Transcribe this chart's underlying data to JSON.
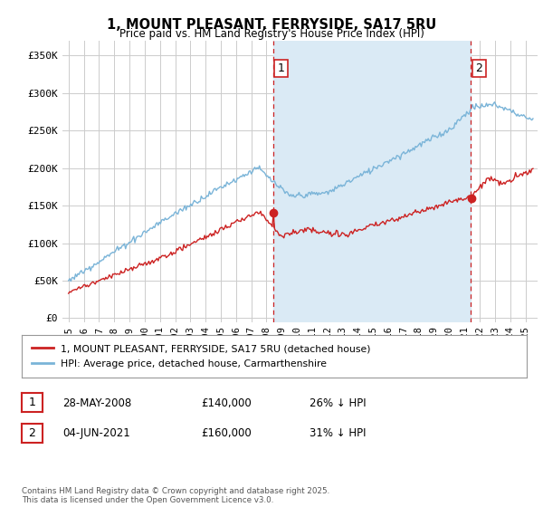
{
  "title": "1, MOUNT PLEASANT, FERRYSIDE, SA17 5RU",
  "subtitle": "Price paid vs. HM Land Registry's House Price Index (HPI)",
  "ylabel_ticks": [
    "£0",
    "£50K",
    "£100K",
    "£150K",
    "£200K",
    "£250K",
    "£300K",
    "£350K"
  ],
  "ytick_values": [
    0,
    50000,
    100000,
    150000,
    200000,
    250000,
    300000,
    350000
  ],
  "ylim": [
    -5000,
    370000
  ],
  "xlim_left": 1994.6,
  "xlim_right": 2025.8,
  "hpi_color": "#7ab4d8",
  "hpi_fill_color": "#daeaf5",
  "price_color": "#cc2222",
  "vline_color": "#cc2222",
  "sale1_x": 2008.42,
  "sale2_x": 2021.43,
  "sale1_label": "1",
  "sale2_label": "2",
  "legend_line1": "1, MOUNT PLEASANT, FERRYSIDE, SA17 5RU (detached house)",
  "legend_line2": "HPI: Average price, detached house, Carmarthenshire",
  "table_rows": [
    {
      "num": "1",
      "date": "28-MAY-2008",
      "price": "£140,000",
      "hpi": "26% ↓ HPI"
    },
    {
      "num": "2",
      "date": "04-JUN-2021",
      "price": "£160,000",
      "hpi": "31% ↓ HPI"
    }
  ],
  "footnote": "Contains HM Land Registry data © Crown copyright and database right 2025.\nThis data is licensed under the Open Government Licence v3.0.",
  "bg_color": "#ffffff",
  "grid_color": "#cccccc",
  "sale1_red_y": 140000,
  "sale2_red_y": 160000
}
